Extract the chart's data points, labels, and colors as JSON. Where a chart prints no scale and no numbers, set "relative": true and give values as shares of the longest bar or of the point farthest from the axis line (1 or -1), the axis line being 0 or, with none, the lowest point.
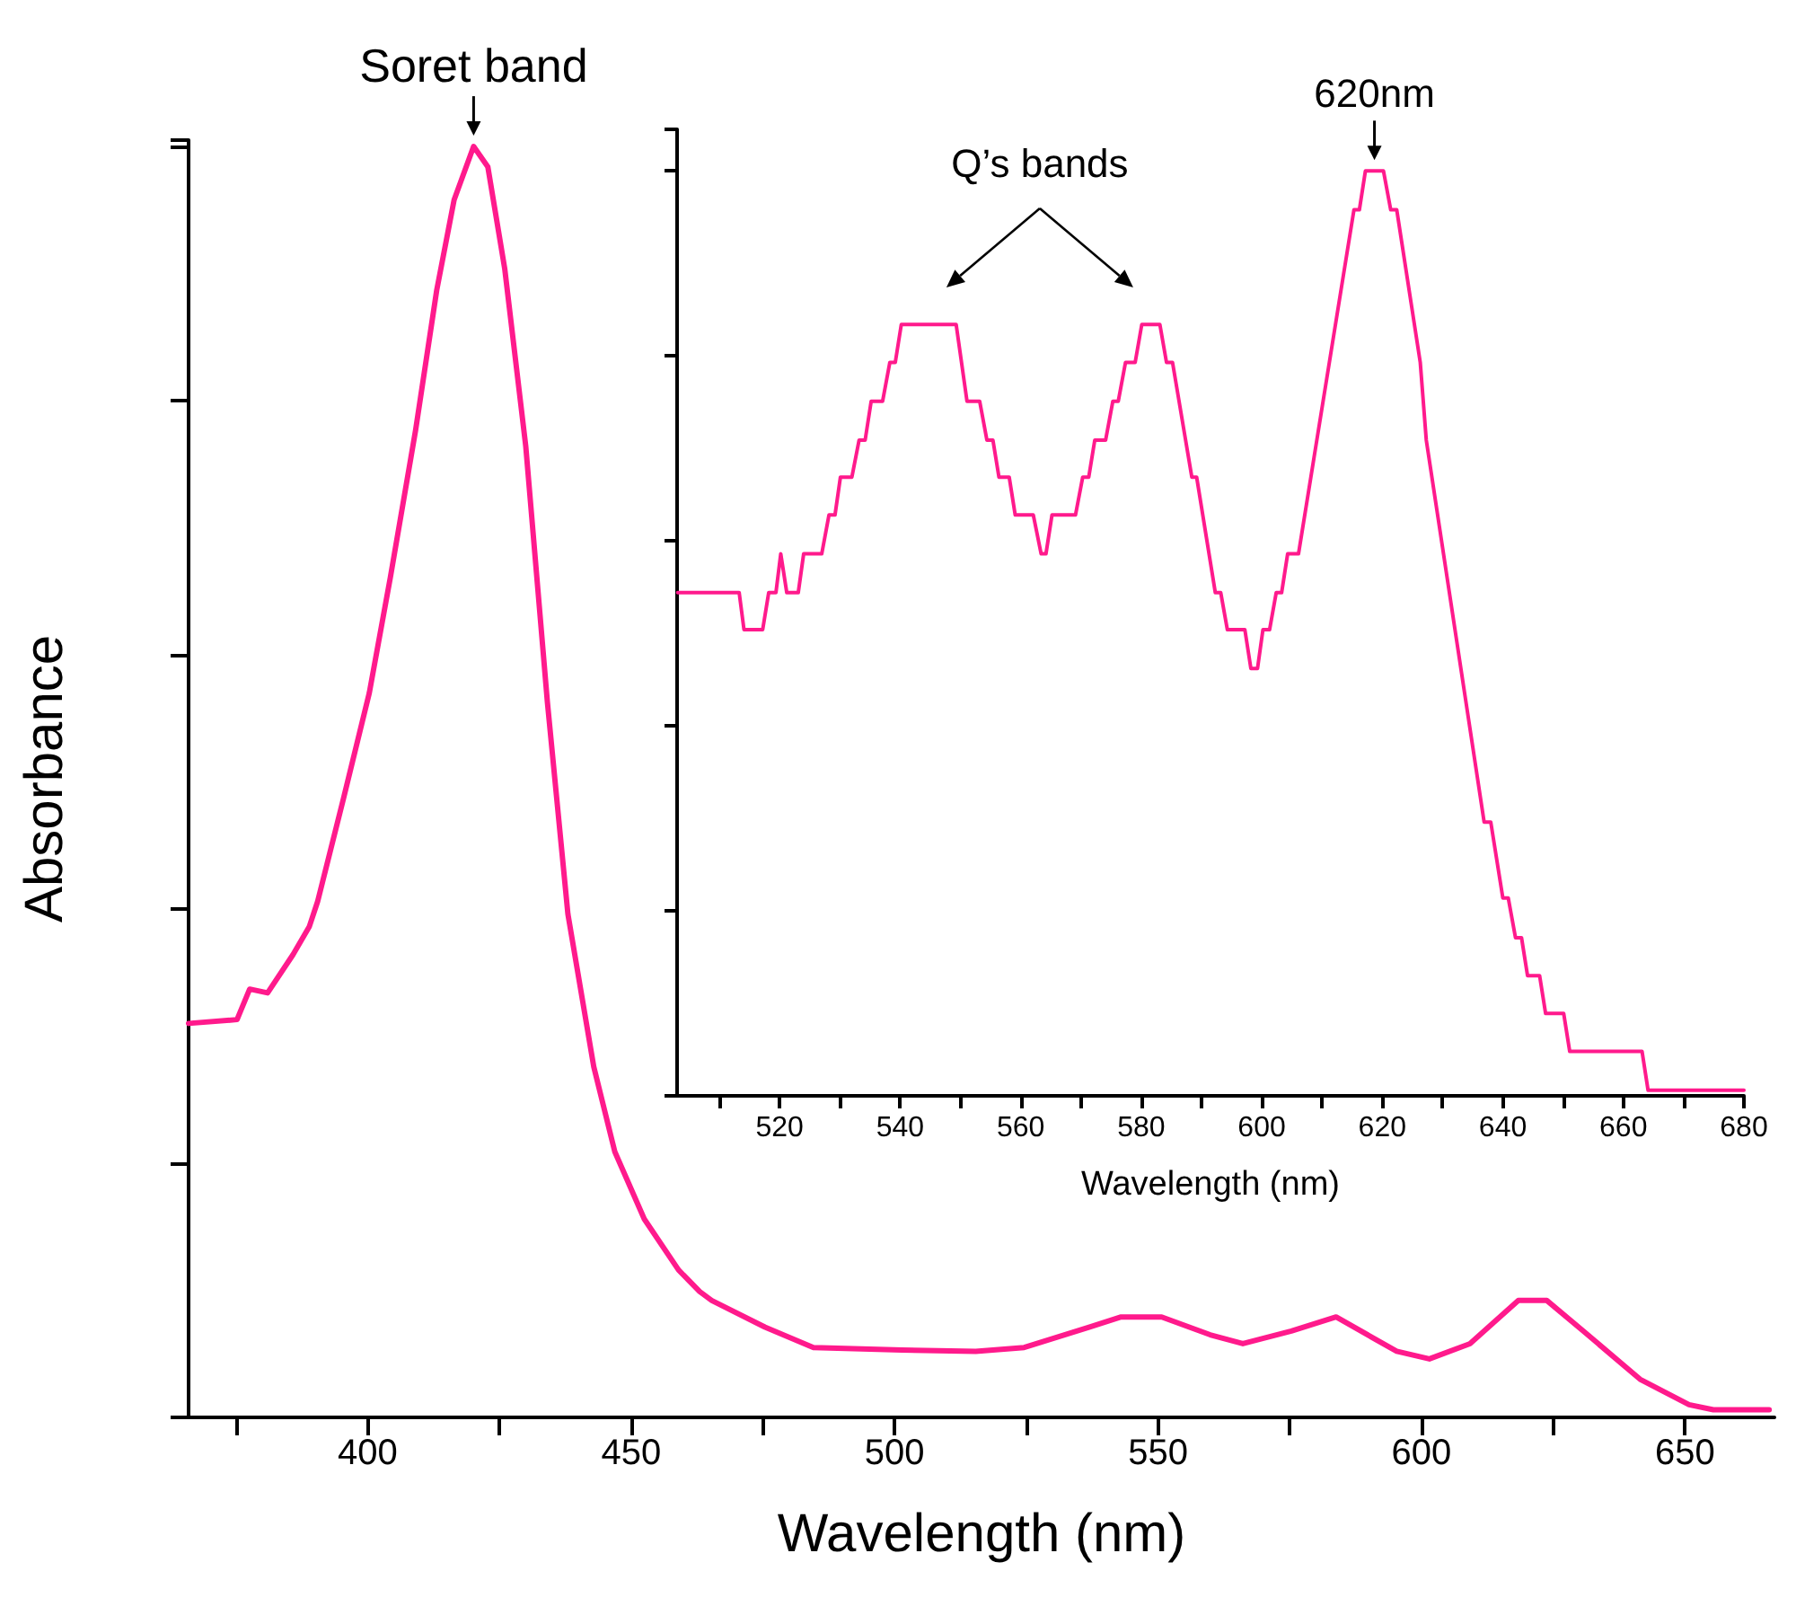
{
  "chart_data": [
    {
      "type": "line",
      "xlabel": "Wavelength (nm)",
      "ylabel": "Absorbance",
      "relative": true,
      "tick_labels": "x",
      "grid": false,
      "marker": "none",
      "line_style": "solid",
      "xlim": [
        366,
        667
      ],
      "xticks": [
        {
          "value": 375,
          "label": null
        },
        400,
        {
          "value": 425,
          "label": null
        },
        450,
        {
          "value": 475,
          "label": null
        },
        500,
        {
          "value": 525,
          "label": null
        },
        550,
        {
          "value": 575,
          "label": null
        },
        600,
        {
          "value": 625,
          "label": null
        },
        650
      ],
      "annotations": [
        {
          "text": "Soret band",
          "x": 420.1,
          "y": 1
        }
      ],
      "series": [
        {
          "color": "#ff1a8c",
          "x": [
            366,
            375.2,
            377.6,
            381,
            385.8,
            388.9,
            390.5,
            395.4,
            400.3,
            404.3,
            409.1,
            413.1,
            416.4,
            420.1,
            422.8,
            426,
            430,
            434.1,
            438,
            442.9,
            446.9,
            452.5,
            459,
            463,
            465.3,
            475.4,
            484.6,
            501.4,
            515.4,
            524.6,
            536.9,
            543,
            550.7,
            559.9,
            566.1,
            575.3,
            583.8,
            595.3,
            601.5,
            609.2,
            618.4,
            623.8,
            630.7,
            641.5,
            650.8,
            655.4,
            666
          ],
          "values": [
            0.31,
            0.313,
            0.337,
            0.334,
            0.364,
            0.386,
            0.406,
            0.487,
            0.57,
            0.661,
            0.777,
            0.887,
            0.958,
            1,
            0.984,
            0.904,
            0.764,
            0.563,
            0.396,
            0.276,
            0.209,
            0.156,
            0.116,
            0.099,
            0.092,
            0.071,
            0.055,
            0.053,
            0.052,
            0.055,
            0.071,
            0.079,
            0.079,
            0.065,
            0.058,
            0.068,
            0.079,
            0.052,
            0.046,
            0.058,
            0.092,
            0.092,
            0.068,
            0.03,
            0.01,
            0.006,
            0.006
          ]
        }
      ]
    },
    {
      "type": "line",
      "xlabel": "Wavelength (nm)",
      "relative": true,
      "tick_labels": "x",
      "grid": false,
      "marker": "none",
      "line_style": "solid",
      "xlim": [
        503,
        680
      ],
      "xticks": [
        {
          "value": 510,
          "label": null
        },
        520,
        {
          "value": 530,
          "label": null
        },
        540,
        {
          "value": 550,
          "label": null
        },
        560,
        {
          "value": 570,
          "label": null
        },
        580,
        {
          "value": 590,
          "label": null
        },
        600,
        {
          "value": 610,
          "label": null
        },
        620,
        {
          "value": 630,
          "label": null
        },
        640,
        {
          "value": 650,
          "label": null
        },
        660,
        {
          "value": 670,
          "label": null
        },
        680
      ],
      "annotations": [
        "Q’s bands",
        {
          "text": "620nm",
          "x": 618.7,
          "y": 1
        }
      ],
      "series": [
        {
          "color": "#ff1a8c",
          "x": [
            503.1,
            513.3,
            514.1,
            517.2,
            518.2,
            519.4,
            520.2,
            521.2,
            523.1,
            524,
            527,
            528.2,
            529.2,
            530.1,
            532,
            533.2,
            534.2,
            535.2,
            537.1,
            538.3,
            539.2,
            540.2,
            549.3,
            551.1,
            553.2,
            554.4,
            555.4,
            556.4,
            558.1,
            559.1,
            562.1,
            563.4,
            564.2,
            565.2,
            569.1,
            570.3,
            571.3,
            572.3,
            574.1,
            575.3,
            576.2,
            577.4,
            579,
            580.1,
            583.1,
            584.2,
            585.2,
            588.4,
            589.2,
            592.3,
            593.2,
            594.3,
            597.2,
            598.2,
            599.3,
            600.2,
            601.3,
            602.4,
            603.3,
            604.3,
            606.1,
            615.3,
            616.2,
            617.2,
            620.2,
            621.4,
            622.4,
            626.3,
            627.3,
            636.9,
            638,
            640,
            640.9,
            642.1,
            643.1,
            644.1,
            646.1,
            647.1,
            650.1,
            651.1,
            663.1,
            664.1,
            680
          ],
          "values": [
            0.544,
            0.544,
            0.504,
            0.504,
            0.544,
            0.544,
            0.586,
            0.544,
            0.544,
            0.586,
            0.586,
            0.628,
            0.628,
            0.669,
            0.669,
            0.709,
            0.709,
            0.751,
            0.751,
            0.793,
            0.793,
            0.834,
            0.834,
            0.751,
            0.751,
            0.709,
            0.709,
            0.669,
            0.669,
            0.628,
            0.628,
            0.586,
            0.586,
            0.628,
            0.628,
            0.669,
            0.669,
            0.709,
            0.709,
            0.751,
            0.751,
            0.793,
            0.793,
            0.834,
            0.834,
            0.793,
            0.793,
            0.669,
            0.669,
            0.544,
            0.544,
            0.504,
            0.504,
            0.462,
            0.462,
            0.504,
            0.504,
            0.544,
            0.544,
            0.586,
            0.586,
            0.958,
            0.958,
            1,
            1,
            0.958,
            0.958,
            0.793,
            0.709,
            0.296,
            0.296,
            0.214,
            0.214,
            0.171,
            0.171,
            0.13,
            0.13,
            0.089,
            0.089,
            0.048,
            0.048,
            0.006,
            0.006
          ]
        }
      ]
    }
  ]
}
